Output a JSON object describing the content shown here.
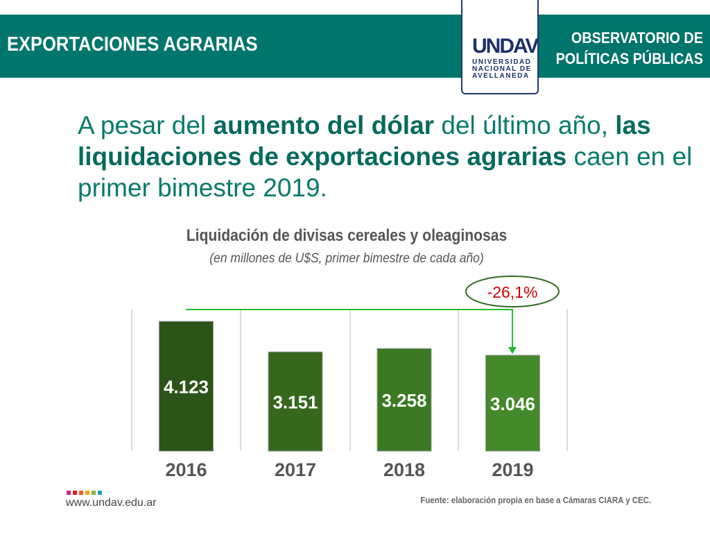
{
  "header": {
    "title": "EXPORTACIONES AGRARIAS",
    "observatorio_line1": "OBSERVATORIO DE",
    "observatorio_line2": "POLÍTICAS PÚBLICAS",
    "logo_mark": "UNDAV",
    "logo_line1": "UNIVERSIDAD",
    "logo_line2": "NACIONAL DE",
    "logo_line3": "AVELLANEDA"
  },
  "headline": {
    "p1": "A pesar del ",
    "b1": "aumento del dólar",
    "p2": " del último año, ",
    "b2": "las liquidaciones de exportaciones agrarias",
    "p3": " caen en el primer bimestre 2019."
  },
  "chart_data": {
    "type": "bar",
    "title": "Liquidación de divisas cereales y oleaginosas",
    "subtitle": "(en millones de U$S, primer bimestre de cada año)",
    "categories": [
      "2016",
      "2017",
      "2018",
      "2019"
    ],
    "values": [
      4123,
      3151,
      3258,
      3046
    ],
    "value_labels": [
      "4.123",
      "3.151",
      "3.258",
      "3.046"
    ],
    "colors": [
      "#2c5418",
      "#35671d",
      "#3b7a22",
      "#44892b"
    ],
    "annotation": "-26,1%",
    "annotation_color": "#cc0000",
    "ylim": [
      0,
      4500
    ]
  },
  "footer": {
    "website": "www.undav.edu.ar",
    "source": "Fuente: elaboración propia en base a Cámaras CIARA y CEC.",
    "dot_colors": [
      "#c2268f",
      "#e11b22",
      "#f15a22",
      "#f7a21b",
      "#8db63c",
      "#1aa3b8"
    ]
  }
}
